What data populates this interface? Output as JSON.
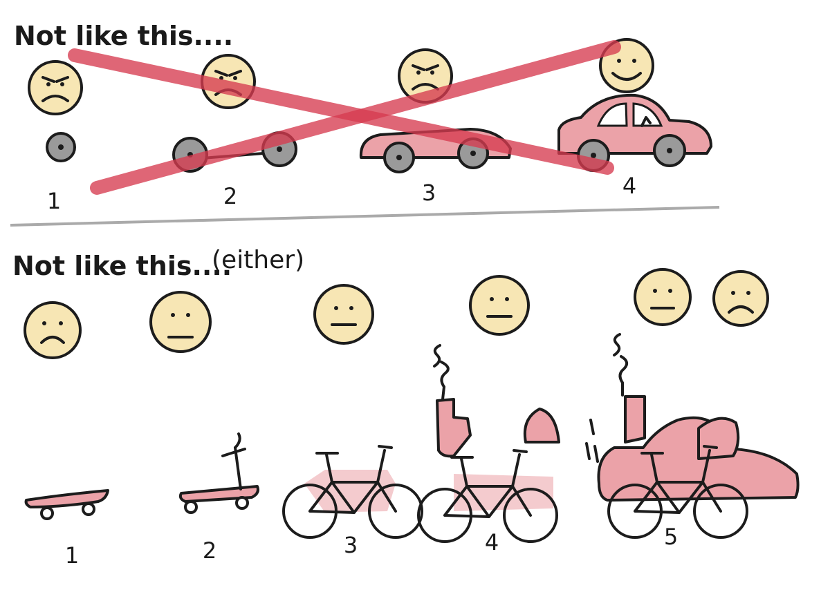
{
  "top_section": {
    "title": "Not like this....",
    "steps": [
      {
        "number": "1",
        "item": "wheel",
        "mood": "angry"
      },
      {
        "number": "2",
        "item": "wheels-and-axle",
        "mood": "angry"
      },
      {
        "number": "3",
        "item": "car-body-without-top",
        "mood": "angry"
      },
      {
        "number": "4",
        "item": "car",
        "mood": "happy"
      }
    ]
  },
  "bottom_section": {
    "title": "Not like this....",
    "title_suffix": "(either)",
    "steps": [
      {
        "number": "1",
        "item": "skateboard",
        "mood": "sad"
      },
      {
        "number": "2",
        "item": "scooter",
        "mood": "neutral"
      },
      {
        "number": "3",
        "item": "bicycle",
        "mood": "neutral"
      },
      {
        "number": "4",
        "item": "motorcycle",
        "mood": "neutral"
      },
      {
        "number": "5",
        "item": "car",
        "mood": "neutral-and-sad"
      }
    ]
  },
  "colors": {
    "face": "#f7e6b4",
    "vehicle": "#eba2a8",
    "wheel": "#9a9a9a",
    "cross": "#d63b4f",
    "divider": "#aaaaaa"
  }
}
